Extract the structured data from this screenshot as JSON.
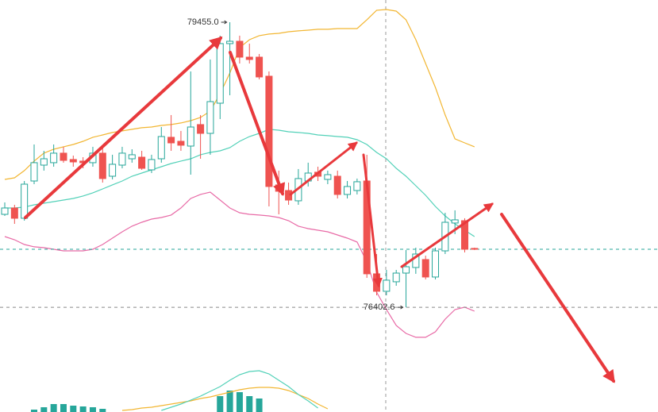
{
  "chart_data": [
    {
      "type": "candlestick",
      "categories": [
        null,
        null,
        null,
        null,
        null,
        null,
        null,
        null,
        null,
        null,
        null,
        null,
        null,
        null,
        null,
        null,
        null,
        null,
        null,
        null,
        null,
        null,
        null,
        null,
        null,
        null,
        null,
        null,
        null,
        null,
        null,
        null,
        null,
        null,
        null,
        null,
        null,
        null,
        null,
        null,
        null,
        null,
        null,
        null,
        null,
        null,
        null,
        null,
        null
      ],
      "open": [
        77398,
        77466,
        77356,
        77755,
        77925,
        77951,
        78053,
        77985,
        77968,
        77951,
        78053,
        77806,
        77925,
        77993,
        78010,
        77874,
        77993,
        78223,
        78180,
        78129,
        78359,
        78265,
        78588,
        79226,
        79251,
        79081,
        79081,
        78877,
        77713,
        77653,
        77543,
        77755,
        77849,
        77772,
        77806,
        77611,
        77653,
        77755,
        76761,
        76574,
        76676,
        76769,
        76829,
        76914,
        76727,
        77007,
        77305,
        77330,
        77033
      ],
      "high": [
        77526,
        77500,
        77755,
        78146,
        78078,
        78146,
        78121,
        78027,
        78010,
        78121,
        78121,
        78036,
        78121,
        78095,
        78078,
        78036,
        78333,
        78461,
        78291,
        78928,
        78461,
        79056,
        79311,
        79455,
        79311,
        79226,
        79115,
        78928,
        77866,
        77738,
        77883,
        77951,
        77908,
        77866,
        77866,
        77755,
        77781,
        78036,
        76973,
        76803,
        76803,
        77016,
        77041,
        76956,
        77041,
        77415,
        77441,
        77356,
        77041
      ],
      "low": [
        77381,
        77296,
        77330,
        77721,
        77866,
        77908,
        77951,
        77908,
        77891,
        77908,
        77738,
        77772,
        77891,
        77951,
        77874,
        77840,
        77951,
        78078,
        78078,
        77823,
        77993,
        78036,
        78418,
        78673,
        79013,
        79013,
        78843,
        77483,
        77398,
        77500,
        77500,
        77696,
        77755,
        77721,
        77568,
        77568,
        77611,
        76718,
        76531,
        76531,
        76633,
        76402.6,
        76761,
        76701,
        76701,
        76973,
        77186,
        76990,
        77016
      ],
      "close": [
        77466,
        77356,
        77721,
        77951,
        77993,
        78053,
        77976,
        77959,
        77951,
        78053,
        77781,
        77934,
        78053,
        78036,
        77891,
        77985,
        78231,
        78163,
        78138,
        78333,
        78265,
        78605,
        79226,
        79251,
        79081,
        79056,
        78869,
        77696,
        77645,
        77551,
        77781,
        77840,
        77806,
        77823,
        77611,
        77696,
        77747,
        76761,
        76574,
        76693,
        76769,
        76837,
        76973,
        76727,
        77007,
        77313,
        77339,
        77024,
        77024
      ],
      "up_color": "#26a69a",
      "down_color": "#ef5350",
      "lines": [
        {
          "color": "#f2b632",
          "values": [
            77772,
            77789,
            77866,
            77968,
            78053,
            78095,
            78121,
            78146,
            78180,
            78223,
            78248,
            78274,
            78291,
            78308,
            78325,
            78333,
            78350,
            78359,
            78376,
            78401,
            78435,
            78503,
            78690,
            78911,
            79183,
            79268,
            79311,
            79328,
            79336,
            79353,
            79362,
            79370,
            79379,
            79379,
            79387,
            79387,
            79387,
            79481,
            79583,
            79591,
            79574,
            79481,
            79268,
            79013,
            78758,
            78461,
            78206,
            78163,
            78121
          ]
        },
        {
          "color": "#52d1b8",
          "values": [
            77466,
            77466,
            77475,
            77500,
            77517,
            77534,
            77551,
            77568,
            77594,
            77628,
            77670,
            77713,
            77755,
            77806,
            77840,
            77874,
            77908,
            77942,
            77968,
            77993,
            78036,
            78061,
            78078,
            78112,
            78180,
            78231,
            78265,
            78308,
            78299,
            78282,
            78274,
            78265,
            78248,
            78240,
            78231,
            78223,
            78197,
            78146,
            78061,
            77993,
            77891,
            77806,
            77704,
            77602,
            77483,
            77381,
            77296,
            77228,
            77160
          ]
        },
        {
          "color": "#e86aa6",
          "values": [
            77160,
            77126,
            77075,
            77050,
            77041,
            77024,
            77007,
            77007,
            77007,
            77024,
            77075,
            77143,
            77211,
            77271,
            77313,
            77347,
            77364,
            77390,
            77466,
            77568,
            77611,
            77636,
            77551,
            77466,
            77415,
            77398,
            77390,
            77381,
            77364,
            77330,
            77271,
            77245,
            77228,
            77211,
            77177,
            77143,
            77101,
            76888,
            76565,
            76378,
            76208,
            76123,
            76081,
            76081,
            76140,
            76276,
            76378,
            76404,
            76361
          ]
        }
      ],
      "max_marker": {
        "value": 79455,
        "label": "79455.0"
      },
      "min_marker": 76402.6,
      "ylim": [
        75868,
        79693
      ]
    },
    {
      "type": "bar",
      "categories": [
        null,
        null,
        null,
        null,
        null,
        null,
        null,
        null,
        null,
        null,
        null,
        null,
        null,
        null,
        null,
        null,
        null,
        null,
        null,
        null,
        null,
        null,
        null,
        null,
        null,
        null,
        null,
        null,
        null,
        null,
        null,
        null,
        null,
        null,
        null,
        null,
        null,
        null,
        null,
        null,
        null,
        null,
        null,
        null,
        null,
        null,
        null,
        null,
        null
      ],
      "values": [
        null,
        null,
        null,
        3,
        6,
        10,
        10,
        8,
        7,
        6,
        4,
        null,
        null,
        null,
        null,
        null,
        null,
        null,
        null,
        null,
        null,
        null,
        20,
        27,
        25,
        20,
        17,
        null,
        null,
        null,
        null,
        null,
        null,
        null,
        null,
        null,
        null,
        null,
        null,
        null,
        null,
        null,
        null,
        null,
        null,
        null,
        null,
        null,
        null
      ],
      "color": "#26a69a",
      "lines": [
        {
          "color": "#f2b632",
          "values": [
            null,
            null,
            null,
            null,
            null,
            null,
            null,
            null,
            null,
            null,
            null,
            null,
            2,
            3,
            5,
            6,
            8,
            10,
            12,
            14,
            17,
            19,
            22,
            25,
            28,
            30,
            31,
            31,
            30,
            27,
            22,
            17,
            10,
            4,
            null,
            null,
            null,
            null,
            null,
            null,
            null,
            null,
            null,
            null,
            null,
            null,
            null,
            null,
            null
          ]
        },
        {
          "color": "#52d1b8",
          "values": [
            null,
            null,
            null,
            null,
            null,
            null,
            null,
            null,
            null,
            null,
            null,
            null,
            null,
            null,
            null,
            null,
            2,
            6,
            10,
            15,
            20,
            26,
            32,
            40,
            47,
            51,
            52,
            48,
            40,
            32,
            22,
            14,
            5,
            null,
            null,
            null,
            null,
            null,
            null,
            null,
            null,
            null,
            null,
            null,
            null,
            null,
            null,
            null,
            null
          ]
        }
      ],
      "ylim": [
        0,
        54
      ]
    }
  ]
}
